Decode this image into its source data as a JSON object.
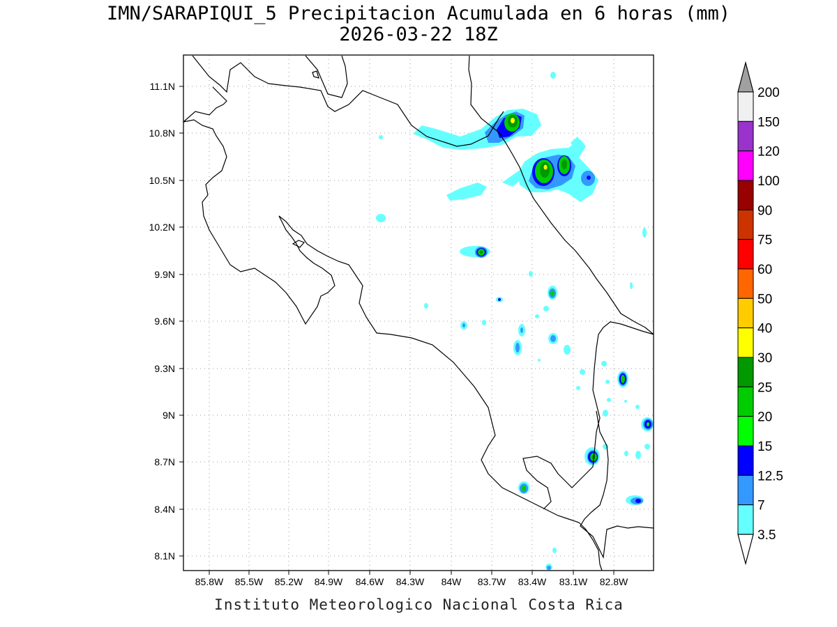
{
  "title": {
    "line1": "IMN/SARAPIQUI_5 Precipitacion Acumulada en 6 horas (mm)",
    "line2": "2026-03-22 18Z"
  },
  "footer": "Instituto Meteorologico Nacional Costa Rica",
  "map": {
    "lon_range": [
      -86.05,
      -82.6
    ],
    "lat_range": [
      8.0,
      11.3
    ],
    "lon_ticks": [
      "85.8W",
      "85.5W",
      "85.2W",
      "84.9W",
      "84.6W",
      "84.3W",
      "84W",
      "83.7W",
      "83.4W",
      "83.1W",
      "82.8W"
    ],
    "lat_ticks": [
      "11.1N",
      "10.8N",
      "10.5N",
      "10.2N",
      "9.9N",
      "9.6N",
      "9.3N",
      "9N",
      "8.7N",
      "8.4N",
      "8.1N"
    ],
    "grid": "dotted"
  },
  "colorbar": {
    "levels": [
      "200",
      "150",
      "120",
      "100",
      "90",
      "75",
      "60",
      "50",
      "40",
      "30",
      "25",
      "20",
      "15",
      "12.5",
      "7",
      "3.5"
    ],
    "colors": [
      "#f0f0f0",
      "#9933cc",
      "#ff00ff",
      "#990000",
      "#cc3300",
      "#ff0000",
      "#ff6600",
      "#ffcc00",
      "#ffff00",
      "#009900",
      "#00cc00",
      "#00ff00",
      "#0000ff",
      "#3399ff",
      "#66ffff"
    ],
    "over_color": "#a0a0a0",
    "under_color": "#ffffff"
  },
  "precip_colors": {
    "c3_5": "#66ffff",
    "c7": "#3399ff",
    "c12_5": "#0000ff",
    "c15": "#00ff00",
    "c20": "#00cc00",
    "c25": "#009900",
    "c30": "#ffff00"
  }
}
